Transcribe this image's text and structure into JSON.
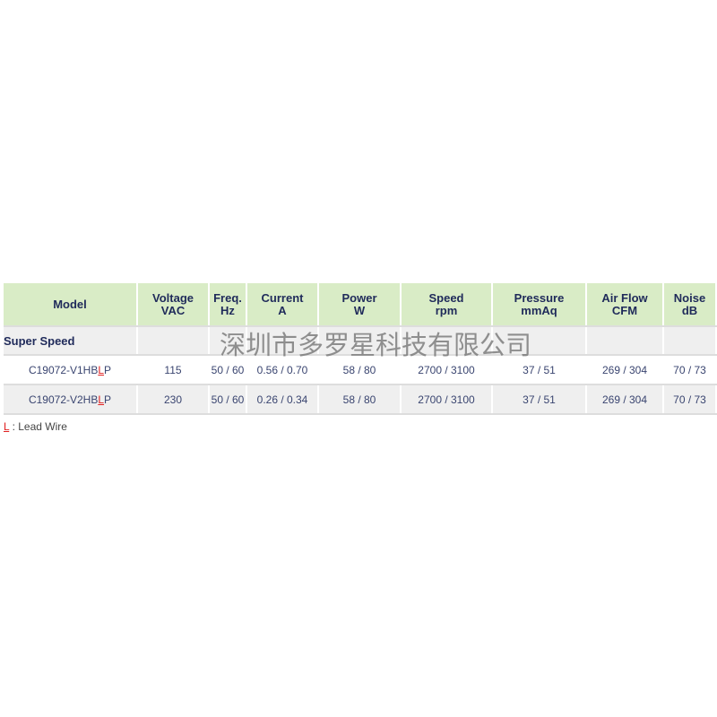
{
  "headers": [
    [
      "Model",
      ""
    ],
    [
      "Voltage",
      "VAC"
    ],
    [
      "Freq.",
      "Hz"
    ],
    [
      "Current",
      "A"
    ],
    [
      "Power",
      "W"
    ],
    [
      "Speed",
      "rpm"
    ],
    [
      "Pressure",
      "mmAq"
    ],
    [
      "Air Flow",
      "CFM"
    ],
    [
      "Noise",
      "dB"
    ]
  ],
  "section": "Super Speed",
  "rows": [
    {
      "model_pre": "C19072-V1HB",
      "model_l": "L",
      "model_post": "P",
      "voltage": "115",
      "freq": "50 / 60",
      "current": "0.56 / 0.70",
      "power": "58 / 80",
      "speed": "2700 / 3100",
      "pressure": "37 / 51",
      "airflow": "269 / 304",
      "noise": "70 / 73"
    },
    {
      "model_pre": "C19072-V2HB",
      "model_l": "L",
      "model_post": "P",
      "voltage": "230",
      "freq": "50 / 60",
      "current": "0.26 / 0.34",
      "power": "58 / 80",
      "speed": "2700 / 3100",
      "pressure": "37 / 51",
      "airflow": "269 / 304",
      "noise": "70 / 73"
    }
  ],
  "note": {
    "key": "L",
    "text": " : Lead Wire"
  },
  "watermark": "深圳市多罗星科技有限公司",
  "colors": {
    "header_bg": "#d9ecc6",
    "highlight": "#e02020"
  }
}
